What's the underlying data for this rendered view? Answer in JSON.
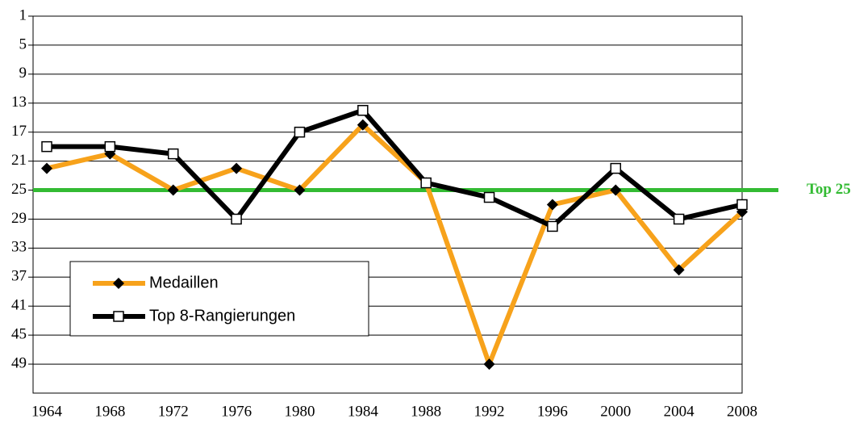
{
  "chart_data": {
    "type": "line",
    "categories": [
      "1964",
      "1968",
      "1972",
      "1976",
      "1980",
      "1984",
      "1988",
      "1992",
      "1996",
      "2000",
      "2004",
      "2008"
    ],
    "series": [
      {
        "name": "Medaillen",
        "color": "#f7a21b",
        "marker": "diamond",
        "values": [
          22,
          20,
          25,
          22,
          25,
          16,
          24,
          49,
          27,
          25,
          36,
          28
        ]
      },
      {
        "name": "Top 8-Rangierungen",
        "color": "#000000",
        "marker": "square",
        "values": [
          19,
          19,
          20,
          29,
          17,
          14,
          24,
          26,
          30,
          22,
          29,
          27
        ]
      }
    ],
    "ylim": [
      1,
      53
    ],
    "yticks": [
      1,
      5,
      9,
      13,
      17,
      21,
      25,
      29,
      33,
      37,
      41,
      45,
      49
    ],
    "y_inverted": true,
    "grid": true,
    "legend": "lower left",
    "reference_line": {
      "value": 25,
      "label": "Top 25",
      "color": "#33bb33"
    }
  }
}
